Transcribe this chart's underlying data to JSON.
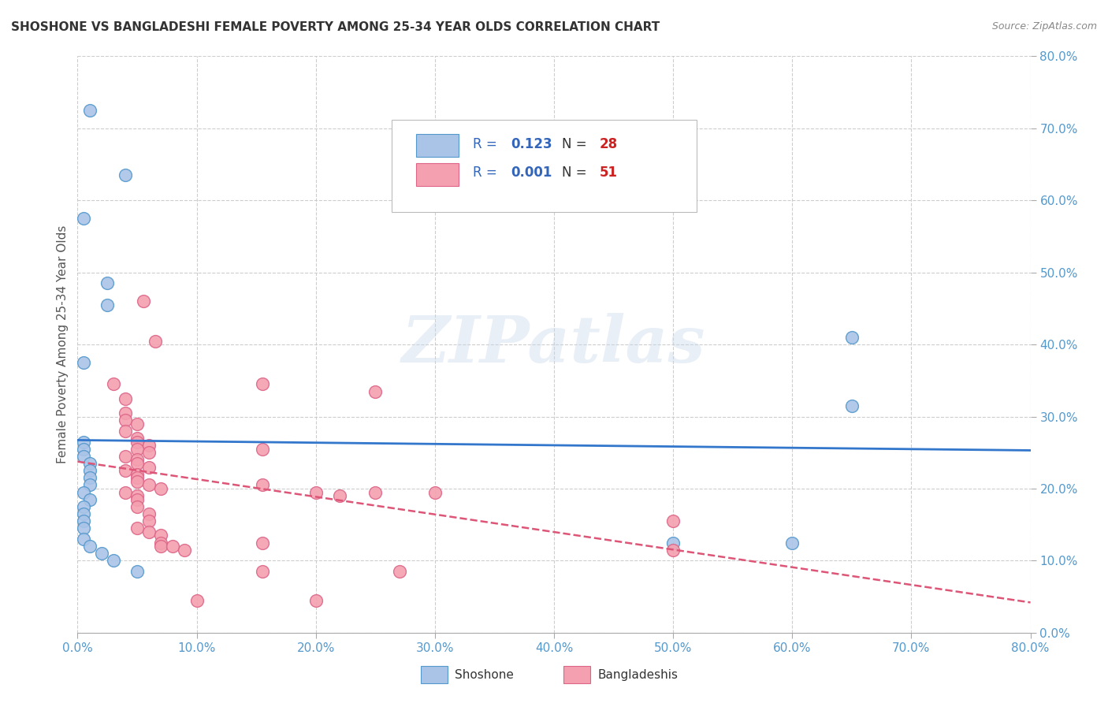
{
  "title": "SHOSHONE VS BANGLADESHI FEMALE POVERTY AMONG 25-34 YEAR OLDS CORRELATION CHART",
  "source": "Source: ZipAtlas.com",
  "ylabel": "Female Poverty Among 25-34 Year Olds",
  "xlim": [
    0,
    0.8
  ],
  "ylim": [
    0,
    0.8
  ],
  "xticks": [
    0.0,
    0.1,
    0.2,
    0.3,
    0.4,
    0.5,
    0.6,
    0.7,
    0.8
  ],
  "yticks": [
    0.0,
    0.1,
    0.2,
    0.3,
    0.4,
    0.5,
    0.6,
    0.7,
    0.8
  ],
  "grid_color": "#c8c8c8",
  "background_color": "#ffffff",
  "shoshone_color": "#aac4e8",
  "bangladeshi_color": "#f4a0b0",
  "shoshone_edge_color": "#5599cc",
  "bangladeshi_edge_color": "#dd6688",
  "shoshone_line_color": "#3377cc",
  "bangladeshi_line_color": "#dd5577",
  "shoshone_R": "0.123",
  "shoshone_N": "28",
  "bangladeshi_R": "0.001",
  "bangladeshi_N": "51",
  "legend_blue_color": "#3366bb",
  "legend_dark_color": "#333333",
  "legend_red_color": "#cc2222",
  "watermark_text": "ZIPatlas",
  "tick_color": "#5599cc",
  "shoshone_points": [
    [
      0.01,
      0.725
    ],
    [
      0.005,
      0.575
    ],
    [
      0.025,
      0.485
    ],
    [
      0.025,
      0.455
    ],
    [
      0.005,
      0.375
    ],
    [
      0.005,
      0.265
    ],
    [
      0.005,
      0.255
    ],
    [
      0.005,
      0.245
    ],
    [
      0.01,
      0.235
    ],
    [
      0.01,
      0.225
    ],
    [
      0.01,
      0.215
    ],
    [
      0.01,
      0.205
    ],
    [
      0.005,
      0.195
    ],
    [
      0.01,
      0.185
    ],
    [
      0.005,
      0.175
    ],
    [
      0.005,
      0.165
    ],
    [
      0.005,
      0.155
    ],
    [
      0.005,
      0.145
    ],
    [
      0.005,
      0.13
    ],
    [
      0.01,
      0.12
    ],
    [
      0.02,
      0.11
    ],
    [
      0.03,
      0.1
    ],
    [
      0.04,
      0.635
    ],
    [
      0.65,
      0.41
    ],
    [
      0.65,
      0.315
    ],
    [
      0.6,
      0.125
    ],
    [
      0.5,
      0.125
    ],
    [
      0.05,
      0.085
    ]
  ],
  "bangladeshi_points": [
    [
      0.055,
      0.46
    ],
    [
      0.065,
      0.405
    ],
    [
      0.03,
      0.345
    ],
    [
      0.04,
      0.325
    ],
    [
      0.04,
      0.305
    ],
    [
      0.04,
      0.295
    ],
    [
      0.05,
      0.29
    ],
    [
      0.04,
      0.28
    ],
    [
      0.05,
      0.27
    ],
    [
      0.05,
      0.265
    ],
    [
      0.06,
      0.26
    ],
    [
      0.05,
      0.255
    ],
    [
      0.06,
      0.25
    ],
    [
      0.04,
      0.245
    ],
    [
      0.05,
      0.24
    ],
    [
      0.05,
      0.235
    ],
    [
      0.06,
      0.23
    ],
    [
      0.04,
      0.225
    ],
    [
      0.05,
      0.22
    ],
    [
      0.05,
      0.215
    ],
    [
      0.05,
      0.21
    ],
    [
      0.06,
      0.205
    ],
    [
      0.07,
      0.2
    ],
    [
      0.04,
      0.195
    ],
    [
      0.05,
      0.19
    ],
    [
      0.05,
      0.185
    ],
    [
      0.05,
      0.175
    ],
    [
      0.06,
      0.165
    ],
    [
      0.06,
      0.155
    ],
    [
      0.05,
      0.145
    ],
    [
      0.06,
      0.14
    ],
    [
      0.07,
      0.135
    ],
    [
      0.07,
      0.125
    ],
    [
      0.07,
      0.12
    ],
    [
      0.08,
      0.12
    ],
    [
      0.09,
      0.115
    ],
    [
      0.155,
      0.345
    ],
    [
      0.155,
      0.255
    ],
    [
      0.155,
      0.205
    ],
    [
      0.155,
      0.125
    ],
    [
      0.155,
      0.085
    ],
    [
      0.2,
      0.195
    ],
    [
      0.22,
      0.19
    ],
    [
      0.25,
      0.335
    ],
    [
      0.25,
      0.195
    ],
    [
      0.27,
      0.085
    ],
    [
      0.3,
      0.195
    ],
    [
      0.5,
      0.155
    ],
    [
      0.5,
      0.115
    ],
    [
      0.1,
      0.045
    ],
    [
      0.2,
      0.045
    ]
  ]
}
